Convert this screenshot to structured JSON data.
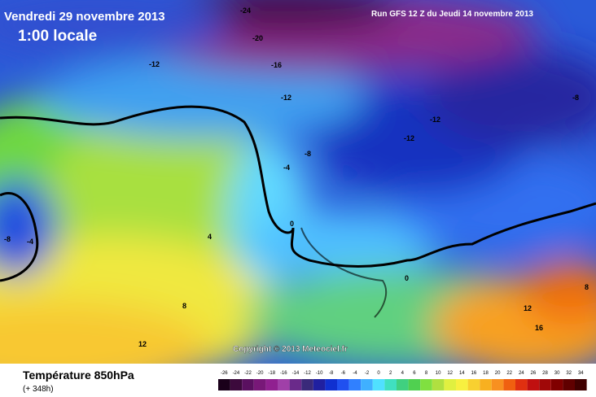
{
  "header": {
    "date": "Vendredi 29 novembre 2013",
    "time": "1:00 locale",
    "run": "Run GFS 12 Z du Jeudi 14 novembre 2013"
  },
  "copyright": "Copyright © 2013 Meteociel.fr",
  "footer": {
    "title": "Température 850hPa",
    "lead": "(+ 348h)"
  },
  "scale": {
    "labels": [
      -26,
      -24,
      -22,
      -20,
      -18,
      -16,
      -14,
      -12,
      -10,
      -8,
      -6,
      -4,
      -2,
      0,
      2,
      4,
      6,
      8,
      10,
      12,
      14,
      16,
      18,
      20,
      22,
      24,
      26,
      28,
      30,
      32,
      34
    ],
    "colors": [
      "#1a001a",
      "#3c0a3c",
      "#5a1060",
      "#781878",
      "#902090",
      "#a040a8",
      "#6a2a8a",
      "#3a2a7a",
      "#2020a0",
      "#1030d0",
      "#2050f0",
      "#3080ff",
      "#40b0ff",
      "#50e0ff",
      "#40e0c0",
      "#40d080",
      "#50d050",
      "#80e040",
      "#b0e040",
      "#e0f040",
      "#f8f040",
      "#f8d030",
      "#f8b020",
      "#f89020",
      "#f06010",
      "#e03010",
      "#c01010",
      "#a00808",
      "#800000",
      "#600000",
      "#400000"
    ]
  },
  "contour_labels": [
    "-24",
    "-20",
    "-16",
    "-12",
    "-12",
    "-12",
    "-12",
    "-8",
    "-8",
    "-8",
    "-4",
    "-4",
    "0",
    "0",
    "4",
    "8",
    "12",
    "12",
    "16",
    "8"
  ]
}
